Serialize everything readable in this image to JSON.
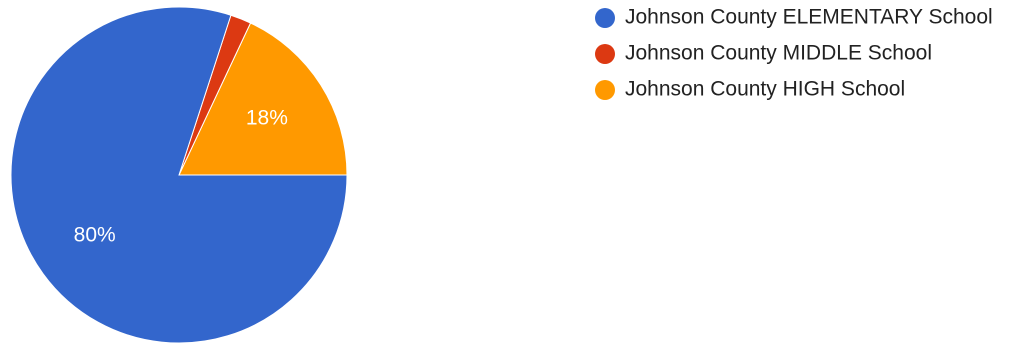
{
  "chart_data": {
    "type": "pie",
    "categories": [
      "Johnson County ELEMENTARY School",
      "Johnson County MIDDLE School",
      "Johnson County HIGH School"
    ],
    "values": [
      80,
      2,
      18
    ],
    "unit": "%",
    "value_labels": [
      "80%",
      "",
      "18%"
    ],
    "colors": [
      "#3366cc",
      "#dc3912",
      "#ff9900"
    ],
    "start_angle_deg": 0,
    "direction": "clockwise-from-3-oclock",
    "legend_position": "top-right"
  }
}
